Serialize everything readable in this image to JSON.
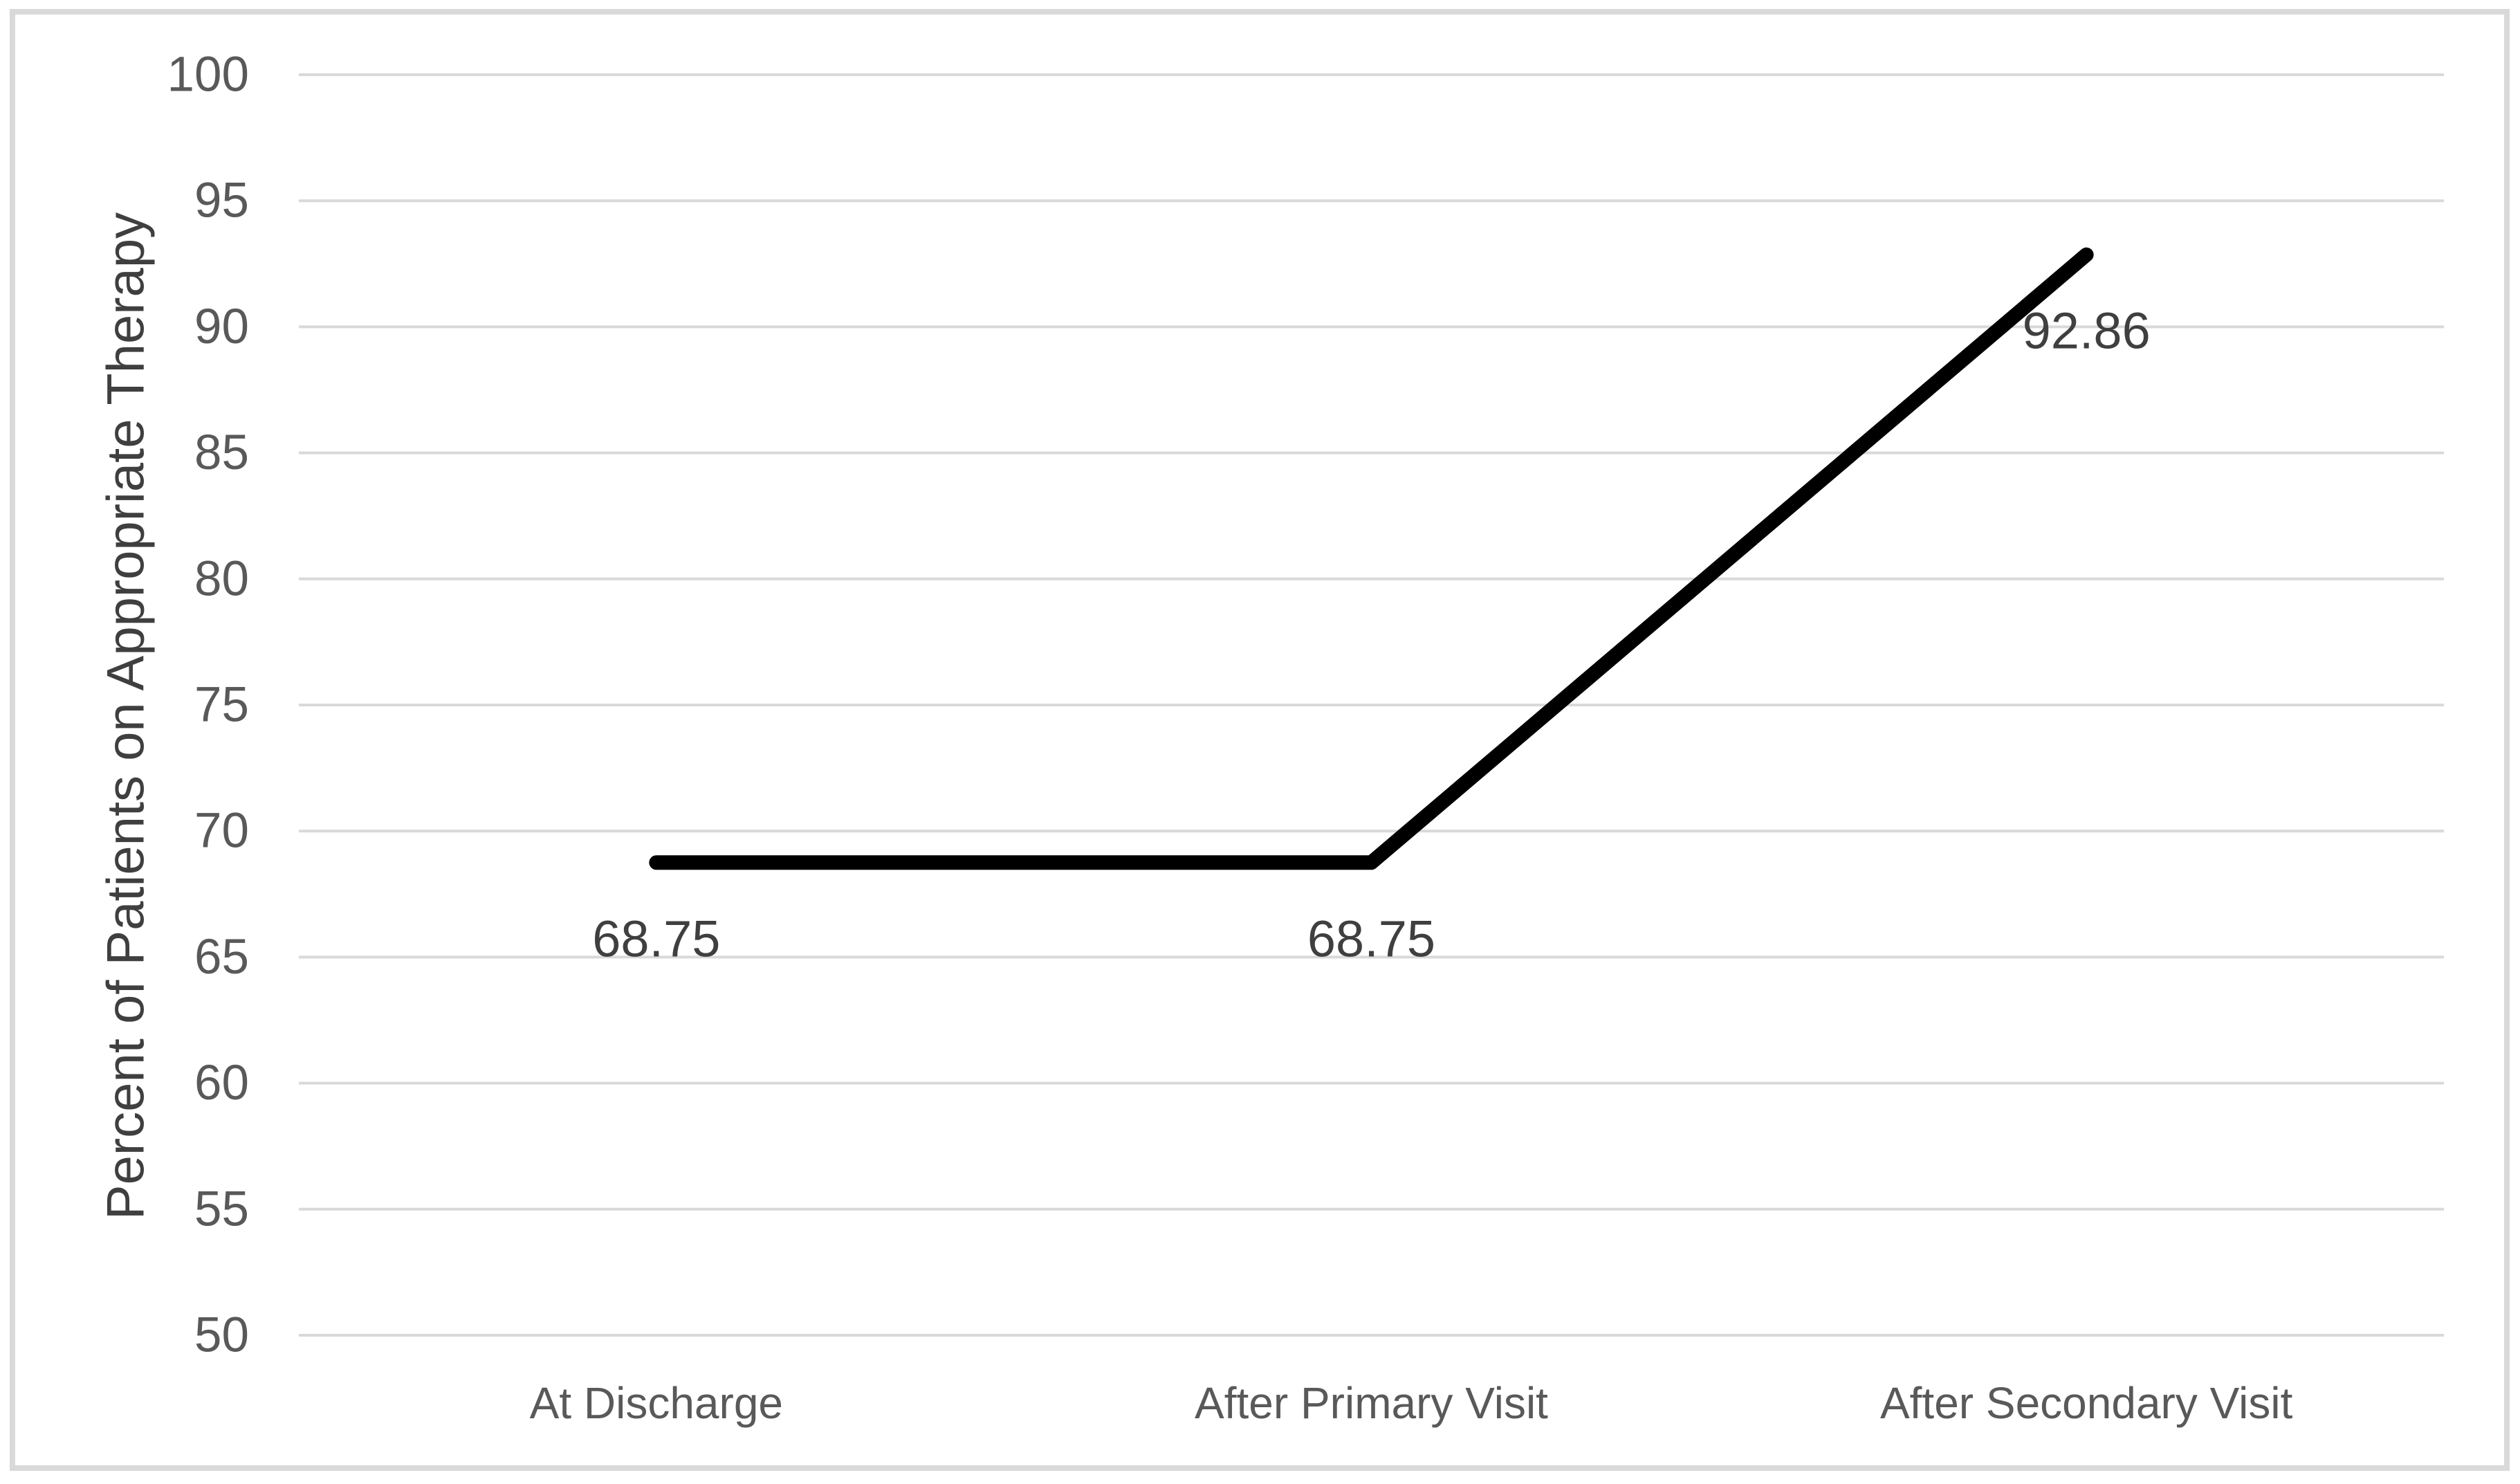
{
  "figure": {
    "background_color": "#FFFFFF",
    "border_color": "#D9D9D9"
  },
  "chart_data": {
    "type": "line",
    "title": "",
    "xlabel": "",
    "ylabel": "Percent of Patients on Appropriate Therapy",
    "categories": [
      "At Discharge",
      "After Primary Visit",
      "After Secondary Visit"
    ],
    "values": [
      68.75,
      68.75,
      92.86
    ],
    "data_labels": [
      "68.75",
      "68.75",
      "92.86"
    ],
    "data_label_position": "below-point",
    "ylim": [
      50,
      100
    ],
    "ytick_interval": 5,
    "ytick_labels": [
      "100",
      "95",
      "90",
      "85",
      "80",
      "75",
      "70",
      "65",
      "60",
      "55",
      "50"
    ],
    "grid": "horizontal",
    "legend": "none",
    "colors": {
      "line": "#000000",
      "gridline": "#D9D9D9",
      "tick_label": "#595959",
      "category_label": "#595959",
      "axis_title": "#3F3F3F",
      "data_label": "#3F3F3F"
    }
  }
}
